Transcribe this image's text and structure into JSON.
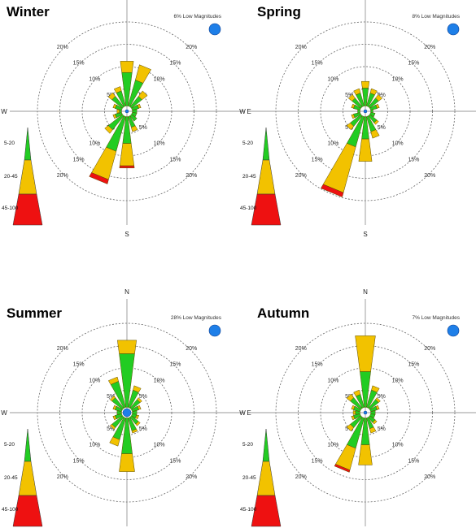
{
  "colors": {
    "band_low": "#22cc22",
    "band_mid": "#f2c200",
    "band_high": "#ee1111",
    "low_magnitude_dot": "#1e7fe8"
  },
  "speed_legend": [
    "5-20",
    "20-45",
    "45-100"
  ],
  "ring_labels": [
    "5%",
    "10%",
    "15%",
    "20%"
  ],
  "compass": [
    "N",
    "E",
    "S",
    "W"
  ],
  "chart_data": [
    {
      "type": "wind-rose",
      "title": "Winter",
      "low_magnitudes": "6% Low Magnitudes",
      "directions_deg": [
        0,
        22.5,
        45,
        67.5,
        90,
        112.5,
        135,
        157.5,
        180,
        202.5,
        225,
        247.5,
        270,
        292.5,
        315,
        337.5
      ],
      "series": [
        {
          "values": [
            7.5,
            6,
            3,
            1.5,
            1,
            1,
            1.5,
            2.5,
            6,
            8,
            4,
            1.5,
            0.5,
            1.5,
            3,
            3.5
          ]
        },
        {
          "values": [
            2.5,
            3.5,
            1.5,
            0.5,
            0,
            0,
            0,
            1,
            5,
            6.5,
            1,
            0.5,
            0.5,
            0.5,
            1,
            1
          ]
        },
        {
          "values": [
            0,
            0,
            0,
            0,
            0,
            0,
            0,
            0,
            0.5,
            1,
            0,
            0,
            0,
            0,
            0,
            0
          ]
        }
      ]
    },
    {
      "type": "wind-rose",
      "title": "Spring",
      "low_magnitudes": "8% Low Magnitudes",
      "directions_deg": [
        0,
        22.5,
        45,
        67.5,
        90,
        112.5,
        135,
        157.5,
        180,
        202.5,
        225,
        247.5,
        270,
        292.5,
        315,
        337.5
      ],
      "series": [
        {
          "values": [
            4,
            3,
            2.5,
            1.5,
            0.5,
            1,
            2,
            3.5,
            5,
            7,
            3,
            1.5,
            0.5,
            1.5,
            2.5,
            3
          ]
        },
        {
          "values": [
            1.5,
            1,
            1,
            0.5,
            0,
            0,
            0.5,
            1.5,
            5,
            10.5,
            1,
            0.5,
            0,
            0.5,
            1,
            1
          ]
        },
        {
          "values": [
            0,
            0,
            0,
            0,
            0,
            0,
            0,
            0,
            0,
            1,
            0,
            0,
            0,
            0,
            0,
            0
          ]
        }
      ]
    },
    {
      "type": "wind-rose",
      "title": "Summer",
      "low_magnitudes": "28% Low Magnitudes",
      "directions_deg": [
        0,
        22.5,
        45,
        67.5,
        90,
        112.5,
        135,
        157.5,
        180,
        202.5,
        225,
        247.5,
        270,
        292.5,
        315,
        337.5
      ],
      "series": [
        {
          "values": [
            12,
            4,
            2.5,
            1.5,
            1,
            1,
            2,
            3,
            8,
            5,
            3,
            1.5,
            1,
            1.5,
            3,
            6
          ]
        },
        {
          "values": [
            3,
            1,
            0.5,
            0.5,
            0,
            0.5,
            0.5,
            0.5,
            4,
            1.5,
            0.5,
            0.5,
            0,
            0.5,
            0.5,
            1
          ]
        },
        {
          "values": [
            0,
            0,
            0,
            0,
            0,
            0,
            0,
            0,
            0,
            0,
            0,
            0,
            0,
            0,
            0,
            0
          ]
        }
      ]
    },
    {
      "type": "wind-rose",
      "title": "Autumn",
      "low_magnitudes": "7% Low Magnitudes",
      "directions_deg": [
        0,
        22.5,
        45,
        67.5,
        90,
        112.5,
        135,
        157.5,
        180,
        202.5,
        225,
        247.5,
        270,
        292.5,
        315,
        337.5
      ],
      "series": [
        {
          "values": [
            8,
            4,
            2.5,
            1.5,
            1,
            1,
            1.5,
            2.5,
            6,
            7,
            3,
            1.5,
            1,
            1.5,
            3,
            3
          ]
        },
        {
          "values": [
            8,
            1,
            0.5,
            0.5,
            0,
            0,
            0.5,
            1,
            4.5,
            5,
            1,
            0.5,
            0.5,
            0.5,
            1,
            1
          ]
        },
        {
          "values": [
            0,
            0,
            0,
            0,
            0,
            0,
            0,
            0,
            0,
            0.5,
            0,
            0,
            0,
            0,
            0,
            0
          ]
        }
      ]
    }
  ]
}
